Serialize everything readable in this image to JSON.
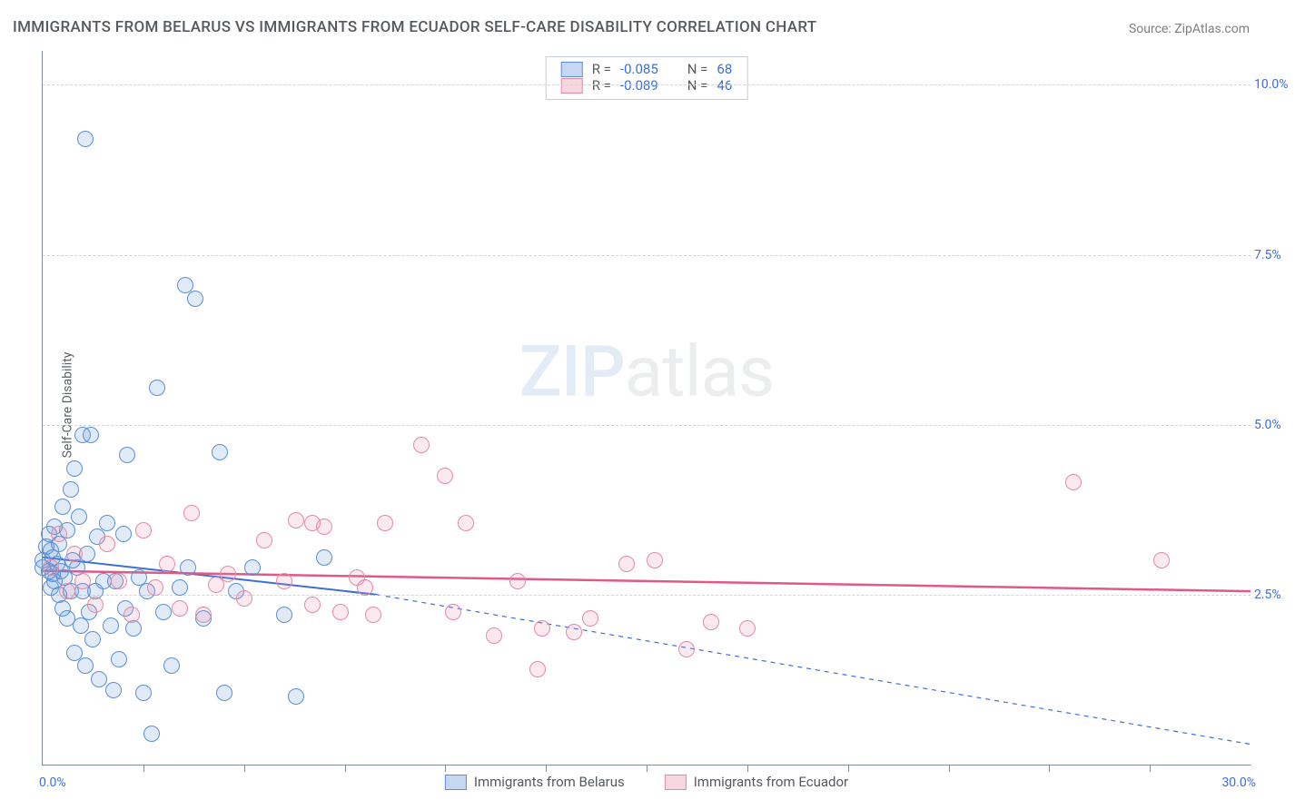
{
  "title": "IMMIGRANTS FROM BELARUS VS IMMIGRANTS FROM ECUADOR SELF-CARE DISABILITY CORRELATION CHART",
  "source_prefix": "Source: ",
  "source_name": "ZipAtlas.com",
  "ylabel": "Self-Care Disability",
  "watermark": {
    "left": "ZIP",
    "right": "atlas"
  },
  "chart": {
    "type": "scatter",
    "xlim": [
      0,
      30
    ],
    "ylim": [
      0,
      10.5
    ],
    "x_tick_step": 2.5,
    "y_grid_values": [
      2.5,
      5.0,
      7.5,
      10.0
    ],
    "y_tick_labels": [
      "2.5%",
      "5.0%",
      "7.5%",
      "10.0%"
    ],
    "x_min_label": "0.0%",
    "x_max_label": "30.0%",
    "background_color": "#ffffff",
    "grid_color": "#d0d6dd",
    "axis_color": "#7e8b9a",
    "marker_radius": 8,
    "marker_stroke_width": 1.2,
    "marker_fill_opacity": 0.18,
    "series": [
      {
        "name": "Immigrants from Belarus",
        "label": "Immigrants from Belarus",
        "color": "#5b8fd6",
        "fill": "#bcd3ef",
        "R": "-0.085",
        "N": "68",
        "trend": {
          "x1": 0,
          "y1": 3.05,
          "x2": 8.3,
          "y2": 2.5,
          "x_dash_to": 30,
          "y_dash_to": 0.3,
          "color": "#3d6fd6",
          "width": 2
        },
        "points": [
          [
            0.0,
            2.9
          ],
          [
            0.0,
            3.0
          ],
          [
            0.1,
            3.2
          ],
          [
            0.15,
            2.85
          ],
          [
            0.15,
            3.4
          ],
          [
            0.2,
            2.6
          ],
          [
            0.2,
            3.15
          ],
          [
            0.25,
            3.05
          ],
          [
            0.25,
            2.8
          ],
          [
            0.3,
            2.7
          ],
          [
            0.3,
            3.5
          ],
          [
            0.35,
            2.95
          ],
          [
            0.4,
            2.5
          ],
          [
            0.4,
            3.25
          ],
          [
            0.45,
            2.85
          ],
          [
            0.5,
            3.8
          ],
          [
            0.5,
            2.3
          ],
          [
            0.55,
            2.75
          ],
          [
            0.6,
            3.45
          ],
          [
            0.6,
            2.15
          ],
          [
            0.7,
            4.05
          ],
          [
            0.7,
            2.55
          ],
          [
            0.75,
            3.0
          ],
          [
            0.8,
            1.65
          ],
          [
            0.8,
            4.35
          ],
          [
            0.85,
            2.9
          ],
          [
            0.9,
            3.65
          ],
          [
            0.95,
            2.05
          ],
          [
            1.0,
            4.85
          ],
          [
            1.0,
            2.55
          ],
          [
            1.05,
            1.45
          ],
          [
            1.1,
            3.1
          ],
          [
            1.15,
            2.25
          ],
          [
            1.2,
            4.85
          ],
          [
            1.25,
            1.85
          ],
          [
            1.3,
            2.55
          ],
          [
            1.35,
            3.35
          ],
          [
            1.4,
            1.25
          ],
          [
            1.5,
            2.7
          ],
          [
            1.6,
            3.55
          ],
          [
            1.7,
            2.05
          ],
          [
            1.75,
            1.1
          ],
          [
            1.8,
            2.7
          ],
          [
            1.9,
            1.55
          ],
          [
            2.0,
            3.4
          ],
          [
            2.05,
            2.3
          ],
          [
            2.1,
            4.55
          ],
          [
            2.25,
            2.0
          ],
          [
            2.4,
            2.75
          ],
          [
            2.5,
            1.05
          ],
          [
            2.6,
            2.55
          ],
          [
            2.7,
            0.45
          ],
          [
            2.85,
            5.55
          ],
          [
            3.0,
            2.25
          ],
          [
            3.2,
            1.45
          ],
          [
            3.4,
            2.6
          ],
          [
            3.55,
            7.05
          ],
          [
            3.6,
            2.9
          ],
          [
            3.8,
            6.85
          ],
          [
            4.0,
            2.15
          ],
          [
            4.4,
            4.6
          ],
          [
            4.5,
            1.05
          ],
          [
            4.8,
            2.55
          ],
          [
            5.2,
            2.9
          ],
          [
            6.0,
            2.2
          ],
          [
            6.3,
            1.0
          ],
          [
            7.0,
            3.05
          ],
          [
            1.05,
            9.2
          ]
        ]
      },
      {
        "name": "Immigrants from Ecuador",
        "label": "Immigrants from Ecuador",
        "color": "#e48aa4",
        "fill": "#f4cdd8",
        "R": "-0.089",
        "N": "46",
        "trend": {
          "x1": 0,
          "y1": 2.85,
          "x2": 30,
          "y2": 2.55,
          "color": "#e05a86",
          "width": 2.5
        },
        "points": [
          [
            0.2,
            2.9
          ],
          [
            0.4,
            3.4
          ],
          [
            0.6,
            2.55
          ],
          [
            0.8,
            3.1
          ],
          [
            1.0,
            2.7
          ],
          [
            1.3,
            2.35
          ],
          [
            1.6,
            3.25
          ],
          [
            1.9,
            2.7
          ],
          [
            2.2,
            2.2
          ],
          [
            2.5,
            3.45
          ],
          [
            2.8,
            2.6
          ],
          [
            3.1,
            2.95
          ],
          [
            3.4,
            2.3
          ],
          [
            3.7,
            3.7
          ],
          [
            4.0,
            2.2
          ],
          [
            4.3,
            2.65
          ],
          [
            4.6,
            2.8
          ],
          [
            5.0,
            2.45
          ],
          [
            5.5,
            3.3
          ],
          [
            6.0,
            2.7
          ],
          [
            6.3,
            3.6
          ],
          [
            6.7,
            2.35
          ],
          [
            7.0,
            3.5
          ],
          [
            7.4,
            2.25
          ],
          [
            7.8,
            2.75
          ],
          [
            8.2,
            2.2
          ],
          [
            8.5,
            3.55
          ],
          [
            9.4,
            4.7
          ],
          [
            10.0,
            4.25
          ],
          [
            10.2,
            2.25
          ],
          [
            10.5,
            3.55
          ],
          [
            11.2,
            1.9
          ],
          [
            11.8,
            2.7
          ],
          [
            12.3,
            1.4
          ],
          [
            12.4,
            2.0
          ],
          [
            13.2,
            1.95
          ],
          [
            13.6,
            2.15
          ],
          [
            14.5,
            2.95
          ],
          [
            15.2,
            3.0
          ],
          [
            16.0,
            1.7
          ],
          [
            16.6,
            2.1
          ],
          [
            17.5,
            2.0
          ],
          [
            25.6,
            4.15
          ],
          [
            27.8,
            3.0
          ],
          [
            6.7,
            3.55
          ],
          [
            8.0,
            2.6
          ]
        ]
      }
    ]
  },
  "legend_top": {
    "R_label": "R =",
    "N_label": "N ="
  }
}
